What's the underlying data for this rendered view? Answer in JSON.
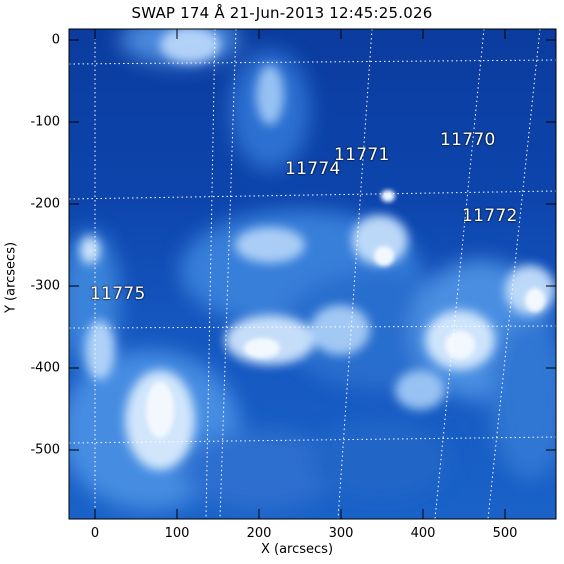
{
  "title": "SWAP 174 Å 21-Jun-2013 12:45:25.026",
  "x_axis": {
    "label": "X (arcsecs)",
    "ticks": [
      "0",
      "100",
      "200",
      "300",
      "400",
      "500"
    ]
  },
  "y_axis": {
    "label": "Y (arcsecs)",
    "ticks": [
      "0",
      "-100",
      "-200",
      "-300",
      "-400",
      "-500"
    ]
  },
  "active_regions": [
    "11770",
    "11771",
    "11772",
    "11774",
    "11775"
  ],
  "colors": {
    "background": "#0a3fa8",
    "highlight": "#e9f3ff",
    "grid": "#ffffff"
  }
}
